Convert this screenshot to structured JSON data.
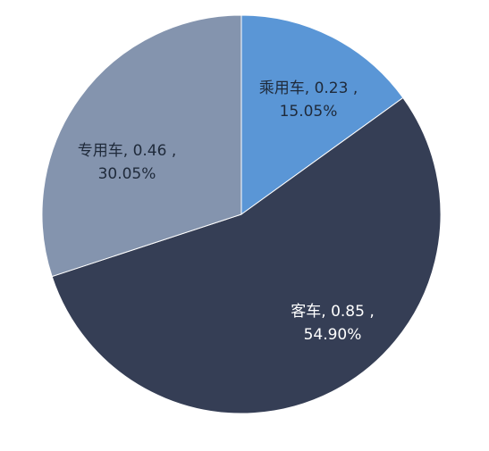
{
  "chart_data": {
    "type": "pie",
    "categories": [
      "乘用车",
      "客车",
      "专用车"
    ],
    "amounts": [
      0.23,
      0.85,
      0.46
    ],
    "values": [
      15.05,
      54.9,
      30.05
    ],
    "value_labels": [
      "15.05%",
      "54.90%",
      "30.05%"
    ],
    "colors": [
      "#5a96d6",
      "#353e55",
      "#8494ae"
    ]
  }
}
